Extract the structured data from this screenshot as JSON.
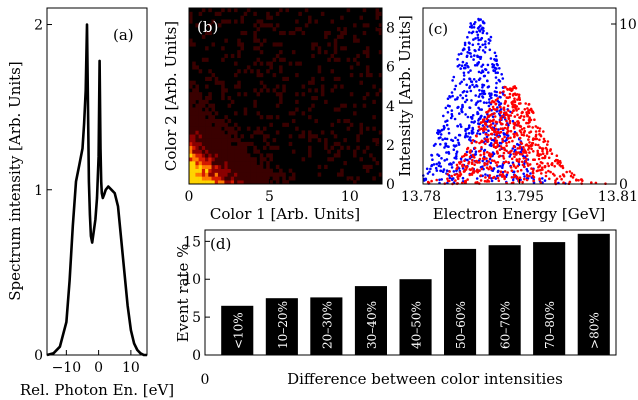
{
  "chart_data": [
    {
      "type": "line",
      "panel_label": "(a)",
      "xlabel": "Rel. Photon En. [eV]",
      "ylabel": "Spectrum intensity [Arb. Units]",
      "xlim": [
        -16,
        15
      ],
      "ylim": [
        0,
        2.1
      ],
      "xticks": [
        "−10",
        "0",
        "10"
      ],
      "yticks": [
        "0",
        "1",
        "2"
      ],
      "x": [
        -16,
        -14,
        -12,
        -10,
        -9,
        -8,
        -7,
        -6,
        -5,
        -4.5,
        -4,
        -3.6,
        -3.3,
        -3.0,
        -2.7,
        -2.4,
        -2.0,
        -1.5,
        -1.0,
        -0.5,
        0,
        0.3,
        0.6,
        0.8,
        1.0,
        1.3,
        1.7,
        2.2,
        3,
        4,
        5,
        6,
        7,
        8,
        9,
        10,
        11,
        12,
        13,
        14,
        15
      ],
      "y": [
        0.0,
        0.01,
        0.05,
        0.2,
        0.45,
        0.78,
        1.05,
        1.15,
        1.25,
        1.4,
        1.6,
        2.0,
        1.5,
        1.05,
        0.85,
        0.72,
        0.68,
        0.75,
        0.82,
        0.95,
        1.2,
        1.78,
        1.25,
        1.05,
        0.98,
        0.95,
        0.97,
        1.0,
        1.02,
        1.0,
        0.98,
        0.9,
        0.7,
        0.5,
        0.3,
        0.15,
        0.07,
        0.03,
        0.01,
        0.0,
        0.0
      ]
    },
    {
      "type": "heatmap",
      "panel_label": "(b)",
      "xlabel": "Color 1 [Arb. Units]",
      "ylabel": "Color 2 [Arb. Units]",
      "xlim": [
        0,
        12
      ],
      "ylim": [
        0,
        9
      ],
      "xticks": [
        "0",
        "5",
        "10"
      ],
      "yticks": [
        "0",
        "2",
        "4",
        "6",
        "8"
      ],
      "colorscale": [
        "#000000",
        "#3a0000",
        "#8a0000",
        "#d41a00",
        "#ff7a00",
        "#ffd400"
      ]
    },
    {
      "type": "scatter",
      "panel_label": "(c)",
      "xlabel": "Electron Energy [GeV]",
      "ylabel": "Intensity [Arb. Units]",
      "xlim": [
        13.78,
        13.81
      ],
      "ylim": [
        0,
        11
      ],
      "xticks": [
        "13.78",
        "13.795",
        "13.81"
      ],
      "yticks": [
        "0",
        "10"
      ],
      "series": [
        {
          "color": "#0000ff",
          "center": 13.7885,
          "spread": 0.004,
          "peak": 10.5
        },
        {
          "color": "#ff0000",
          "center": 13.7935,
          "spread": 0.0045,
          "peak": 6.2
        }
      ]
    },
    {
      "type": "bar",
      "panel_label": "(d)",
      "xlabel": "Difference between color intensities",
      "ylabel": "Event rate %",
      "ylim": [
        0,
        16.5
      ],
      "yticks": [
        "0",
        "5",
        "10",
        "15"
      ],
      "xtick_zero": "0",
      "categories": [
        "<10%",
        "10–20%",
        "20–30%",
        "30–40%",
        "40–50%",
        "50–60%",
        "60–70%",
        "70–80%",
        ">80%"
      ],
      "values": [
        6.5,
        7.5,
        7.6,
        9.1,
        10.0,
        14.0,
        14.5,
        14.9,
        16.0
      ],
      "bar_color": "#000000"
    }
  ]
}
